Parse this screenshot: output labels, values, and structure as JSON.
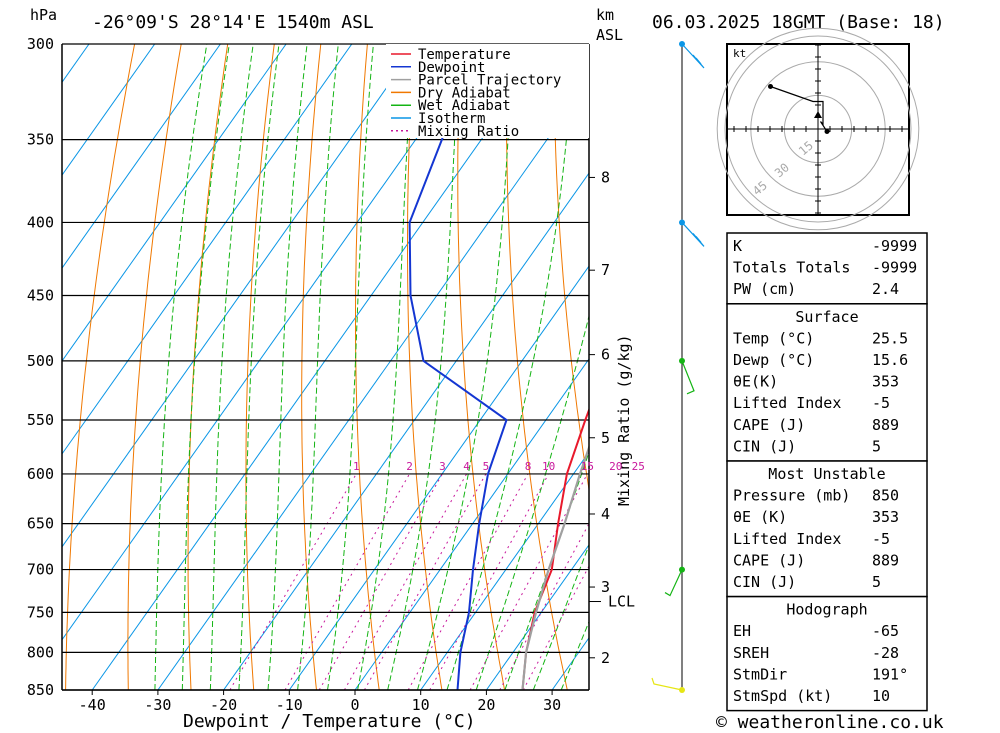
{
  "header": {
    "pressure_unit": "hPa",
    "location": "-26°09'S 28°14'E 1540m ASL",
    "height_unit": "km",
    "height_ref": "ASL",
    "datetime": "06.03.2025 18GMT (Base: 18)"
  },
  "footer": {
    "credit": "© weatheronline.co.uk"
  },
  "chart_data": [
    {
      "type": "line",
      "title": "",
      "xlabel": "Dewpoint / Temperature (°C)",
      "ylabel": "hPa",
      "y2label": "Mixing Ratio (g/kg)",
      "xlim": [
        -45,
        35
      ],
      "ylim": [
        850,
        300
      ],
      "pressure_levels": [
        300,
        350,
        400,
        450,
        500,
        550,
        600,
        650,
        700,
        750,
        800,
        850
      ],
      "x_ticks": [
        -40,
        -30,
        -20,
        -10,
        0,
        10,
        20,
        30
      ],
      "km_ticks": [
        {
          "label": "8",
          "p": 372
        },
        {
          "label": "7",
          "p": 432
        },
        {
          "label": "6",
          "p": 495
        },
        {
          "label": "5",
          "p": 566
        },
        {
          "label": "4",
          "p": 640
        },
        {
          "label": "3",
          "p": 720
        },
        {
          "label": "2",
          "p": 807
        }
      ],
      "lcl": {
        "label": "LCL",
        "p": 737
      },
      "mixing_ratio_labels": [
        "1",
        "2",
        "3",
        "4",
        "5",
        "8",
        "10",
        "15",
        "20",
        "25"
      ],
      "legend": [
        "Temperature",
        "Dewpoint",
        "Parcel Trajectory",
        "Dry Adiabat",
        "Wet Adiabat",
        "Isotherm",
        "Mixing Ratio"
      ],
      "colors": {
        "temperature": "#e8192c",
        "dewpoint": "#1436d2",
        "parcel": "#a0a0a0",
        "dry_adiabat": "#f07800",
        "wet_adiabat": "#14b414",
        "isotherm": "#0a96e6",
        "mixing_ratio": "#c8189c"
      },
      "series": [
        {
          "name": "Temperature",
          "points": [
            [
              850,
              25.5
            ],
            [
              800,
              22
            ],
            [
              750,
              19
            ],
            [
              700,
              17
            ],
            [
              650,
              13
            ],
            [
              600,
              9
            ],
            [
              550,
              6
            ],
            [
              500,
              3
            ],
            [
              450,
              0
            ],
            [
              400,
              -5
            ],
            [
              350,
              -12
            ]
          ]
        },
        {
          "name": "Dewpoint",
          "points": [
            [
              850,
              15.6
            ],
            [
              800,
              12
            ],
            [
              750,
              9
            ],
            [
              700,
              5
            ],
            [
              650,
              1
            ],
            [
              600,
              -3
            ],
            [
              550,
              -6
            ],
            [
              500,
              -25
            ],
            [
              450,
              -34
            ],
            [
              400,
              -42
            ],
            [
              350,
              -46
            ],
            [
              300,
              -51
            ]
          ]
        },
        {
          "name": "Parcel Trajectory",
          "points": [
            [
              850,
              25.5
            ],
            [
              800,
              22
            ],
            [
              750,
              19.2
            ],
            [
              700,
              16.5
            ],
            [
              650,
              14
            ],
            [
              600,
              11
            ],
            [
              550,
              8
            ],
            [
              500,
              4
            ],
            [
              450,
              -1
            ],
            [
              400,
              -7
            ],
            [
              350,
              -14
            ]
          ]
        }
      ]
    },
    {
      "type": "scatter",
      "title": "Hodograph",
      "unit_label": "kt",
      "ring_labels": [
        "15",
        "30",
        "45"
      ],
      "points": [
        [
          -9.5,
          8.5
        ],
        [
          -1,
          5.5
        ],
        [
          1,
          5.5
        ],
        [
          1,
          1
        ],
        [
          0.5,
          1.5
        ],
        [
          1.8,
          -0.5
        ]
      ]
    }
  ],
  "wind_profile": [
    {
      "p": 300,
      "color": "#0a96e6"
    },
    {
      "p": 400,
      "color": "#0a96e6"
    },
    {
      "p": 500,
      "color": "#14b414"
    },
    {
      "p": 700,
      "color": "#14b414"
    },
    {
      "p": 850,
      "color": "#e6e614"
    }
  ],
  "indices": {
    "block1": [
      {
        "label": "K",
        "value": "-9999"
      },
      {
        "label": "Totals Totals",
        "value": "-9999"
      },
      {
        "label": "PW (cm)",
        "value": "2.4"
      }
    ],
    "surface": {
      "title": "Surface",
      "rows": [
        {
          "label": "Temp (°C)",
          "value": "25.5"
        },
        {
          "label": "Dewp (°C)",
          "value": "15.6"
        },
        {
          "label": "θE(K)",
          "value": "353"
        },
        {
          "label": "Lifted Index",
          "value": "-5"
        },
        {
          "label": "CAPE (J)",
          "value": "889"
        },
        {
          "label": "CIN (J)",
          "value": "5"
        }
      ]
    },
    "most_unstable": {
      "title": "Most Unstable",
      "rows": [
        {
          "label": "Pressure (mb)",
          "value": "850"
        },
        {
          "label": "θE (K)",
          "value": "353"
        },
        {
          "label": "Lifted Index",
          "value": "-5"
        },
        {
          "label": "CAPE (J)",
          "value": "889"
        },
        {
          "label": "CIN (J)",
          "value": "5"
        }
      ]
    },
    "hodograph": {
      "title": "Hodograph",
      "rows": [
        {
          "label": "EH",
          "value": "-65"
        },
        {
          "label": "SREH",
          "value": "-28"
        },
        {
          "label": "StmDir",
          "value": "191°"
        },
        {
          "label": "StmSpd (kt)",
          "value": "10"
        }
      ]
    }
  }
}
